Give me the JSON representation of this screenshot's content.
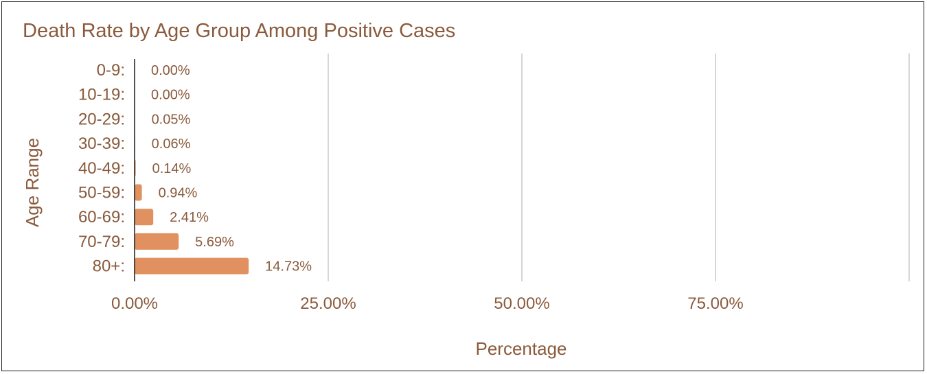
{
  "chart_data": {
    "type": "bar",
    "orientation": "horizontal",
    "title": "Death Rate by Age Group Among Positive Cases",
    "xlabel": "Percentage",
    "ylabel": "Age Range",
    "categories": [
      "0-9:",
      "10-19:",
      "20-29:",
      "30-39:",
      "40-49:",
      "50-59:",
      "60-69:",
      "70-79:",
      "80+:"
    ],
    "values": [
      0.0,
      0.0,
      0.05,
      0.06,
      0.14,
      0.94,
      2.41,
      5.69,
      14.73
    ],
    "data_labels": [
      "0.00%",
      "0.00%",
      "0.05%",
      "0.06%",
      "0.14%",
      "0.94%",
      "2.41%",
      "5.69%",
      "14.73%"
    ],
    "x_ticks": [
      0,
      25,
      50,
      75
    ],
    "x_tick_labels": [
      "0.00%",
      "25.00%",
      "50.00%",
      "75.00%"
    ],
    "xlim": [
      0,
      100
    ],
    "grid": true,
    "bar_color": "#e0915f",
    "text_color": "#8a5a3c"
  }
}
